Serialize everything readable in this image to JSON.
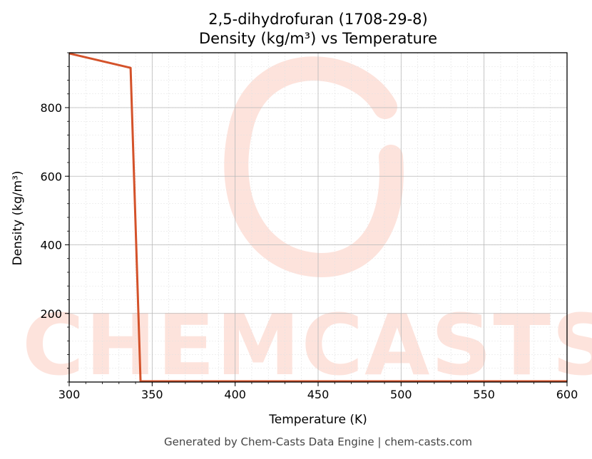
{
  "chart_data": {
    "type": "line",
    "title": "2,5-dihydrofuran (1708-29-8)",
    "subtitle": "Density (kg/m³) vs Temperature",
    "xlabel": "Temperature (K)",
    "ylabel": "Density (kg/m³)",
    "xlim": [
      300,
      600
    ],
    "ylim": [
      0,
      960
    ],
    "xticks": [
      300,
      350,
      400,
      450,
      500,
      550,
      600
    ],
    "yticks": [
      200,
      400,
      600,
      800
    ],
    "grid": true,
    "series": [
      {
        "color": "#d4522a",
        "x": [
          300,
          337,
          343,
          600
        ],
        "y": [
          958,
          916,
          2,
          2
        ]
      }
    ]
  },
  "watermark": {
    "text": "CHEMCASTS",
    "color": "#fde3dc"
  },
  "footer": "Generated by Chem-Casts Data Engine | chem-casts.com"
}
